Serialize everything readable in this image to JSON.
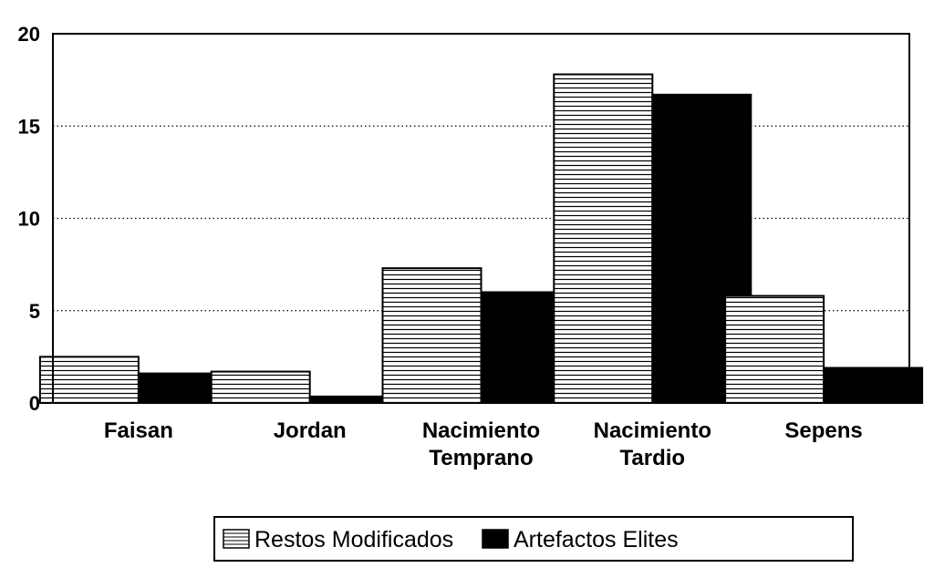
{
  "chart_data": {
    "type": "bar",
    "categories": [
      [
        "Faisan"
      ],
      [
        "Jordan"
      ],
      [
        "Nacimiento",
        "Temprano"
      ],
      [
        "Nacimiento",
        "Tardio"
      ],
      [
        "Sepens"
      ]
    ],
    "series": [
      {
        "name": "Restos Modificados",
        "values": [
          2.5,
          1.7,
          7.3,
          17.8,
          5.8
        ],
        "pattern": "horizontal-stripes"
      },
      {
        "name": "Artefactos Elites",
        "values": [
          1.6,
          0.35,
          6.0,
          16.7,
          1.9
        ],
        "pattern": "solid-black"
      }
    ],
    "ylim": [
      0,
      20
    ],
    "yticks": [
      0,
      5,
      10,
      15,
      20
    ],
    "grid": "horizontal-dotted",
    "legend_position": "bottom",
    "title": "",
    "xlabel": "",
    "ylabel": ""
  },
  "colors": {
    "ink": "#000000",
    "background": "#ffffff",
    "stripe_fill": "#ffffff"
  }
}
